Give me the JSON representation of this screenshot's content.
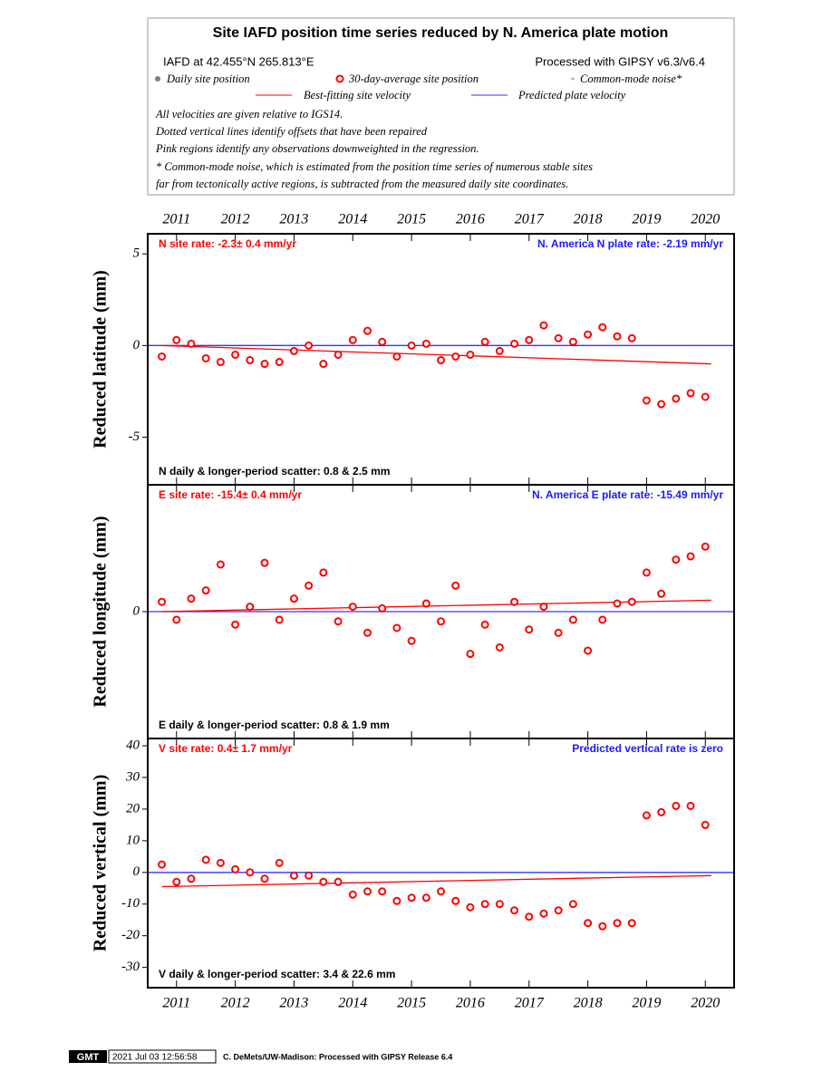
{
  "header": {
    "title": "Site IAFD position time series reduced by N. America plate motion",
    "site": "IAFD at 42.455°N 265.813°E",
    "processing": "Processed with GIPSY v6.3/v6.4",
    "legend": [
      "Daily site position",
      "30-day-average site position",
      "Common-mode noise*",
      "Best-fitting site velocity",
      "Predicted plate velocity"
    ],
    "notes": [
      "All velocities are given relative to IGS14.",
      "Dotted vertical lines identify offsets that have been repaired",
      "Pink regions identify any observations downweighted in the regression.",
      "* Common-mode noise, which is estimated from the position time series of numerous stable sites",
      "far from tectonically active regions, is subtracted from the measured daily site coordinates."
    ]
  },
  "footer": {
    "logo": "GMT",
    "timestamp": "2021 Jul 03 12:56:58",
    "credit": "C. DeMets/UW-Madison: Processed with GIPSY Release 6.4"
  },
  "chart_data": [
    {
      "type": "scatter",
      "y_label": "Reduced latitude (mm)",
      "rate_label": "N site rate:  -2.3± 0.4 mm/yr",
      "plate_label": "N. America N plate rate: -2.19 mm/yr",
      "scatter_label": "N daily & longer-period scatter:   0.8 &   2.5 mm",
      "x_label_side": "top",
      "xlim": [
        2010.51,
        2020.49
      ],
      "xticks": [
        2011,
        2012,
        2013,
        2014,
        2015,
        2016,
        2017,
        2018,
        2019,
        2020
      ],
      "ylim": [
        -7.6,
        6.1
      ],
      "yticks": [
        -5,
        0,
        5
      ],
      "x": [
        2010.75,
        2011,
        2011.25,
        2011.5,
        2011.75,
        2012,
        2012.25,
        2012.5,
        2012.75,
        2013,
        2013.25,
        2013.5,
        2013.75,
        2014,
        2014.25,
        2014.5,
        2014.75,
        2015,
        2015.25,
        2015.5,
        2015.75,
        2016,
        2016.25,
        2016.5,
        2016.75,
        2017,
        2017.25,
        2017.5,
        2017.75,
        2018,
        2018.25,
        2018.5,
        2018.75,
        2019,
        2019.25,
        2019.5,
        2019.75,
        2020
      ],
      "series": [
        {
          "kind": "line",
          "color": "#3333ff",
          "x": [
            2010.51,
            2020.49
          ],
          "values": [
            0,
            0
          ]
        },
        {
          "kind": "line",
          "color": "#ff0000",
          "x": [
            2010.75,
            2020.1
          ],
          "values": [
            0,
            -1.0
          ]
        },
        {
          "kind": "points",
          "color": "#ff0000",
          "values": [
            -0.6,
            0.3,
            0.1,
            -0.7,
            -0.9,
            -0.5,
            -0.8,
            -1.0,
            -0.9,
            -0.3,
            0,
            -1.0,
            -0.5,
            0.3,
            0.8,
            0.2,
            -0.6,
            0,
            0.1,
            -0.8,
            -0.6,
            -0.5,
            0.2,
            -0.3,
            0.1,
            0.3,
            1.1,
            0.4,
            0.2,
            0.6,
            1.0,
            0.5,
            0.4,
            -3.0,
            -3.2,
            -2.9,
            -2.6,
            -2.8
          ]
        }
      ]
    },
    {
      "type": "scatter",
      "y_label": "Reduced longitude (mm)",
      "rate_label": "E site rate: -15.4± 0.4 mm/yr",
      "plate_label": "N. America E plate rate: -15.49 mm/yr",
      "scatter_label": "E daily & longer-period scatter:   0.8 &   1.9 mm",
      "xlim": [
        2010.51,
        2020.49
      ],
      "xticks": [
        2011,
        2012,
        2013,
        2014,
        2015,
        2016,
        2017,
        2018,
        2019,
        2020
      ],
      "ylim": [
        -7.8,
        7.8
      ],
      "yticks": [
        0
      ],
      "x": [
        2010.75,
        2011,
        2011.25,
        2011.5,
        2011.75,
        2012,
        2012.25,
        2012.5,
        2012.75,
        2013,
        2013.25,
        2013.5,
        2013.75,
        2014,
        2014.25,
        2014.5,
        2014.75,
        2015,
        2015.25,
        2015.5,
        2015.75,
        2016,
        2016.25,
        2016.5,
        2016.75,
        2017,
        2017.25,
        2017.5,
        2017.75,
        2018,
        2018.25,
        2018.5,
        2018.75,
        2019,
        2019.25,
        2019.5,
        2019.75,
        2020
      ],
      "series": [
        {
          "kind": "line",
          "color": "#3333ff",
          "x": [
            2010.51,
            2020.49
          ],
          "values": [
            0,
            0
          ]
        },
        {
          "kind": "line",
          "color": "#ff0000",
          "x": [
            2010.75,
            2020.1
          ],
          "values": [
            0,
            0.7
          ]
        },
        {
          "kind": "points",
          "color": "#ff0000",
          "values": [
            0.6,
            -0.5,
            0.8,
            1.3,
            2.9,
            -0.8,
            0.3,
            3.0,
            -0.5,
            0.8,
            1.6,
            2.4,
            -0.6,
            0.3,
            -1.3,
            0.2,
            -1.0,
            -1.8,
            0.5,
            -0.6,
            1.6,
            -2.6,
            -0.8,
            -2.2,
            0.6,
            -1.1,
            0.3,
            -1.3,
            -0.5,
            -2.4,
            -0.5,
            0.5,
            0.6,
            2.4,
            1.1,
            3.2,
            3.4,
            4.0
          ]
        }
      ]
    },
    {
      "type": "scatter",
      "y_label": "Reduced vertical (mm)",
      "rate_label": "V site rate:  0.4± 1.7 mm/yr",
      "plate_label": "Predicted vertical rate is zero",
      "scatter_label": "V daily & longer-period scatter:   3.4 &  22.6 mm",
      "x_label_side": "bottom",
      "xlim": [
        2010.51,
        2020.49
      ],
      "xticks": [
        2011,
        2012,
        2013,
        2014,
        2015,
        2016,
        2017,
        2018,
        2019,
        2020
      ],
      "ylim": [
        -36.4,
        42.3
      ],
      "yticks": [
        -30,
        -20,
        -10,
        0,
        10,
        20,
        30,
        40
      ],
      "x": [
        2010.75,
        2011,
        2011.25,
        2011.5,
        2011.75,
        2012,
        2012.25,
        2012.5,
        2012.75,
        2013,
        2013.25,
        2013.5,
        2013.75,
        2014,
        2014.25,
        2014.5,
        2014.75,
        2015,
        2015.25,
        2015.5,
        2015.75,
        2016,
        2016.25,
        2016.5,
        2016.75,
        2017,
        2017.25,
        2017.5,
        2017.75,
        2018,
        2018.25,
        2018.5,
        2018.75,
        2019,
        2019.25,
        2019.5,
        2019.75,
        2020
      ],
      "series": [
        {
          "kind": "line",
          "color": "#3333ff",
          "x": [
            2010.51,
            2020.49
          ],
          "values": [
            0,
            0
          ]
        },
        {
          "kind": "line",
          "color": "#ff0000",
          "x": [
            2010.75,
            2020.1
          ],
          "values": [
            -4.5,
            -1
          ]
        },
        {
          "kind": "points",
          "color": "#ff0000",
          "values": [
            2.5,
            -3,
            -2,
            4,
            3,
            1,
            0,
            -2,
            3,
            -1,
            -1,
            -3,
            -3,
            -7,
            -6,
            -6,
            -9,
            -8,
            -8,
            -6,
            -9,
            -11,
            -10,
            -10,
            -12,
            -14,
            -13,
            -12,
            -10,
            -16,
            -17,
            -16,
            -16,
            18,
            19,
            21,
            21,
            15
          ]
        }
      ]
    }
  ]
}
